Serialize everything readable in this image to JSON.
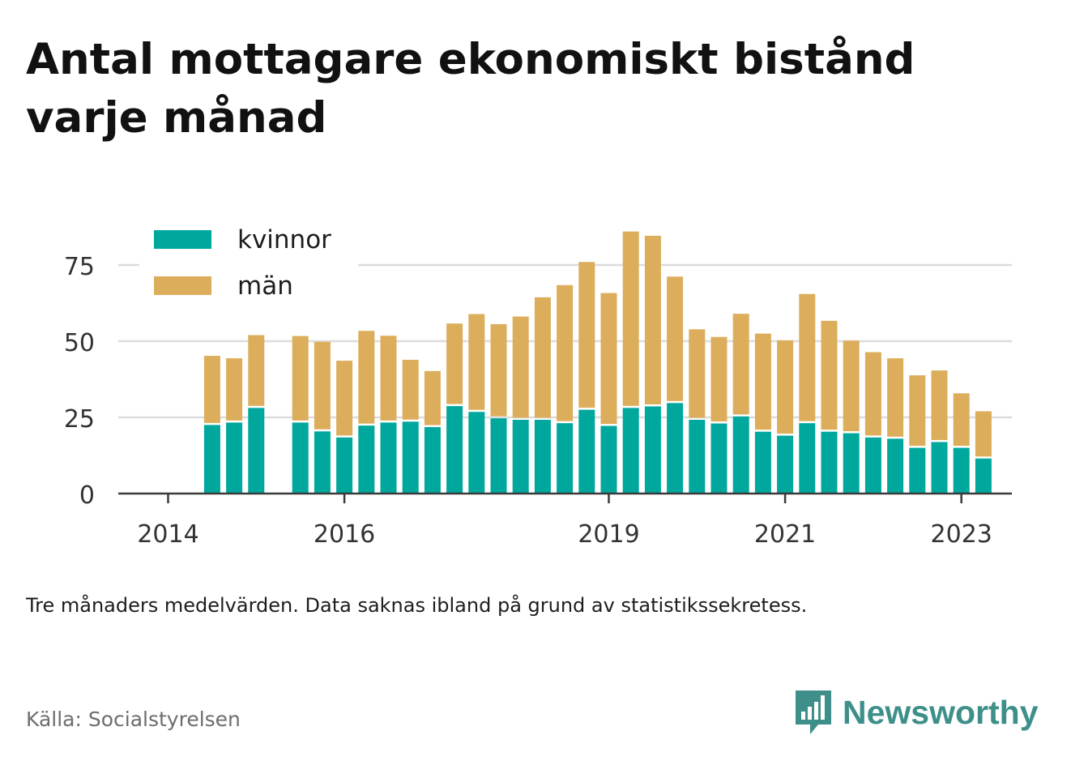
{
  "title": "Antal mottagare ekonomiskt bistånd varje månad",
  "note": "Tre månaders medelvärden. Data saknas ibland på grund av statistikssekretess.",
  "source": "Källa: Socialstyrelsen",
  "brand": {
    "name": "Newsworthy",
    "icon": "newsworthy-logo-icon",
    "color": "#3e8f8a"
  },
  "chart_data": {
    "type": "bar",
    "stacked": true,
    "yticks": [
      0,
      25,
      50,
      75
    ],
    "ylim": [
      0,
      90
    ],
    "xticks": [
      {
        "label": "2014",
        "index": 0
      },
      {
        "label": "2016",
        "index": 8
      },
      {
        "label": "2019",
        "index": 20
      },
      {
        "label": "2021",
        "index": 28
      },
      {
        "label": "2023",
        "index": 36
      }
    ],
    "grid": true,
    "legend_position": "top-left",
    "series": [
      {
        "name": "kvinnor",
        "color": "#00a79d",
        "values": [
          null,
          null,
          22.5,
          23.3,
          28.1,
          null,
          23.3,
          20.4,
          18.4,
          22.3,
          23.3,
          23.6,
          21.8,
          28.7,
          26.8,
          24.7,
          24.2,
          24.2,
          23.1,
          27.5,
          22.2,
          28.1,
          28.6,
          29.7,
          24.2,
          23.0,
          25.3,
          20.3,
          19.0,
          23.1,
          20.3,
          19.8,
          18.4,
          18.0,
          15.0,
          16.9,
          15.0,
          11.5
        ]
      },
      {
        "name": "män",
        "color": "#dcae5c",
        "values": [
          null,
          null,
          22.7,
          21.1,
          23.9,
          null,
          28.4,
          29.4,
          25.2,
          31.1,
          28.5,
          20.3,
          18.4,
          27.1,
          32.1,
          30.9,
          33.9,
          40.2,
          45.3,
          48.5,
          43.6,
          57.9,
          56.0,
          41.5,
          29.7,
          28.4,
          33.7,
          32.2,
          31.3,
          42.4,
          36.4,
          30.4,
          28.0,
          26.4,
          23.8,
          23.5,
          17.9,
          15.5
        ]
      }
    ]
  }
}
